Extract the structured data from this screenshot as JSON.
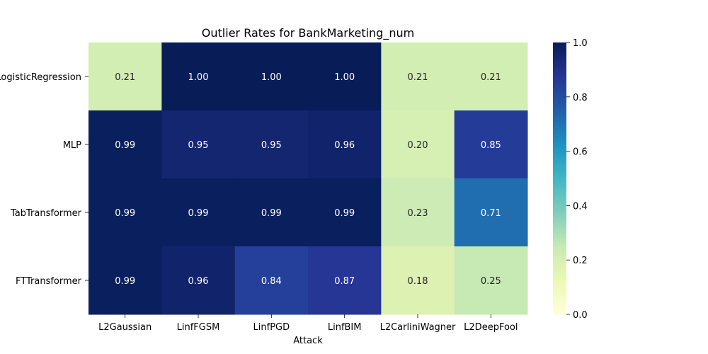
{
  "chart_data": {
    "type": "heatmap",
    "title": "Outlier Rates for BankMarketing_num",
    "xlabel": "Attack",
    "ylabel": "",
    "x_categories": [
      "L2Gaussian",
      "LinfFGSM",
      "LinfPGD",
      "LinfBIM",
      "L2CarliniWagner",
      "L2DeepFool"
    ],
    "y_categories": [
      "LogisticRegression",
      "MLP",
      "TabTransformer",
      "FTTransformer"
    ],
    "values": [
      [
        0.21,
        1.0,
        1.0,
        1.0,
        0.21,
        0.21
      ],
      [
        0.99,
        0.95,
        0.95,
        0.96,
        0.2,
        0.85
      ],
      [
        0.99,
        0.99,
        0.99,
        0.99,
        0.23,
        0.71
      ],
      [
        0.99,
        0.96,
        0.84,
        0.87,
        0.18,
        0.25
      ]
    ],
    "value_format": "0.00",
    "colormap": "YlGnBu",
    "vmin": 0.0,
    "vmax": 1.0,
    "colorbar_ticks": [
      "0.0",
      "0.2",
      "0.4",
      "0.6",
      "0.8",
      "1.0"
    ],
    "colorbar_position": "right"
  }
}
